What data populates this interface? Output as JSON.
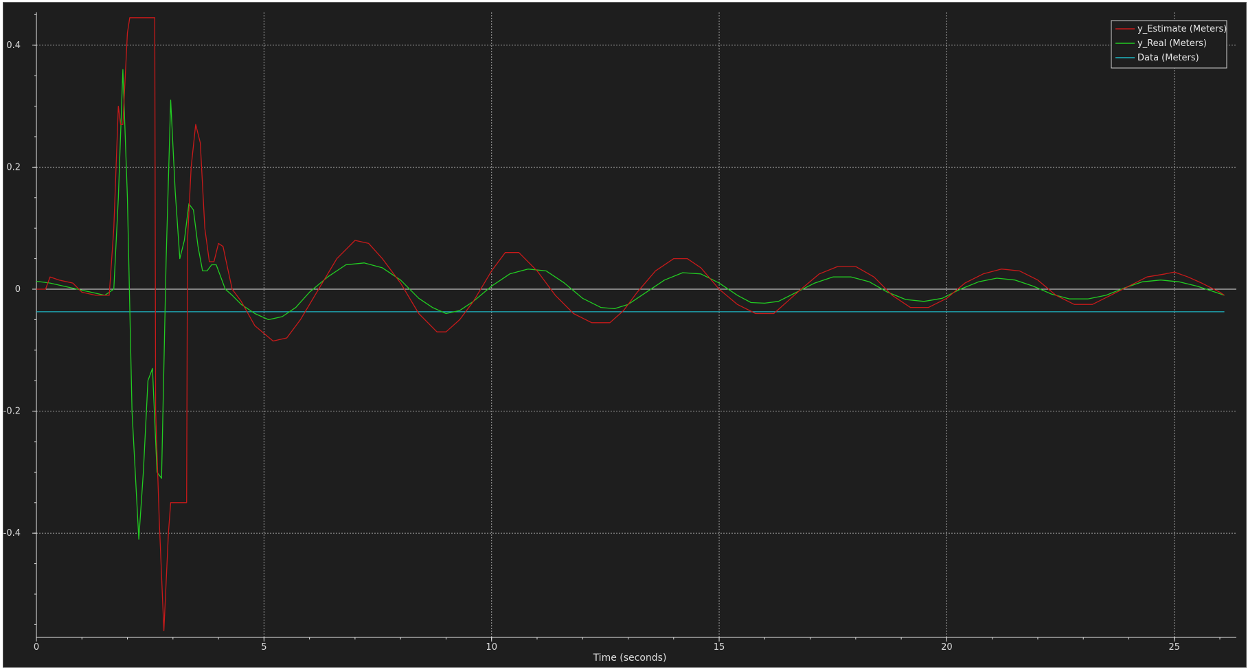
{
  "chart_data": {
    "type": "line",
    "title": "",
    "xlabel": "Time (seconds)",
    "ylabel": "",
    "xlim": [
      0,
      26.3
    ],
    "ylim": [
      -0.57,
      0.47
    ],
    "x_ticks": [
      0,
      5,
      10,
      15,
      20,
      25
    ],
    "y_ticks": [
      -0.4,
      -0.2,
      0,
      0.2,
      0.4
    ],
    "x_tick_labels": [
      "0",
      "5",
      "10",
      "15",
      "20",
      "25"
    ],
    "y_tick_labels": [
      "-0.4",
      "-0.2",
      "0",
      "0.2",
      "0.4"
    ],
    "grid": true,
    "legend_position": "top-right",
    "colors": {
      "background": "#1e1e1e",
      "grid": "#bfbfbf",
      "axis": "#e6e6e6",
      "zero_line": "#e6e6e6"
    },
    "series": [
      {
        "name": "y_Estimate (Meters)",
        "color": "#c81a1a",
        "x": [
          0,
          0.2,
          0.3,
          0.5,
          0.8,
          1.0,
          1.3,
          1.6,
          1.7,
          1.8,
          1.85,
          1.9,
          2.0,
          2.05,
          2.1,
          2.6,
          2.62,
          2.7,
          2.8,
          2.9,
          2.95,
          3.0,
          3.3,
          3.32,
          3.4,
          3.5,
          3.6,
          3.7,
          3.8,
          3.9,
          4.0,
          4.1,
          4.2,
          4.3,
          4.5,
          4.8,
          5.2,
          5.5,
          5.8,
          6.2,
          6.6,
          7.0,
          7.3,
          7.6,
          8.0,
          8.4,
          8.8,
          9.0,
          9.3,
          9.6,
          10.0,
          10.3,
          10.6,
          11.0,
          11.4,
          11.8,
          12.2,
          12.6,
          12.9,
          13.2,
          13.6,
          14.0,
          14.3,
          14.6,
          15.0,
          15.4,
          15.8,
          16.2,
          16.5,
          16.8,
          17.2,
          17.6,
          18.0,
          18.4,
          18.8,
          19.2,
          19.6,
          20.0,
          20.4,
          20.8,
          21.2,
          21.6,
          22.0,
          22.4,
          22.8,
          23.2,
          23.6,
          24.0,
          24.4,
          24.8,
          25.0,
          25.3,
          25.6,
          26.0,
          26.1
        ],
        "y": [
          0.0,
          0.0,
          0.02,
          0.015,
          0.01,
          -0.005,
          -0.01,
          -0.01,
          0.1,
          0.3,
          0.27,
          0.27,
          0.42,
          0.445,
          0.445,
          0.445,
          -0.2,
          -0.38,
          -0.56,
          -0.4,
          -0.35,
          -0.35,
          -0.35,
          0.08,
          0.2,
          0.27,
          0.24,
          0.1,
          0.045,
          0.045,
          0.075,
          0.07,
          0.035,
          0.0,
          -0.02,
          -0.06,
          -0.085,
          -0.08,
          -0.05,
          0.0,
          0.05,
          0.08,
          0.075,
          0.05,
          0.01,
          -0.04,
          -0.07,
          -0.07,
          -0.05,
          -0.02,
          0.03,
          0.06,
          0.06,
          0.03,
          -0.01,
          -0.04,
          -0.055,
          -0.055,
          -0.035,
          -0.005,
          0.03,
          0.05,
          0.05,
          0.035,
          0.0,
          -0.025,
          -0.04,
          -0.04,
          -0.02,
          0.0,
          0.025,
          0.037,
          0.037,
          0.02,
          -0.01,
          -0.03,
          -0.03,
          -0.015,
          0.01,
          0.025,
          0.033,
          0.03,
          0.015,
          -0.01,
          -0.025,
          -0.025,
          -0.01,
          0.005,
          0.02,
          0.025,
          0.028,
          0.02,
          0.01,
          -0.005,
          -0.01
        ]
      },
      {
        "name": "y_Real (Meters)",
        "color": "#22cc22",
        "x": [
          0,
          0.3,
          0.6,
          0.9,
          1.2,
          1.5,
          1.7,
          1.8,
          1.9,
          2.0,
          2.1,
          2.25,
          2.35,
          2.45,
          2.55,
          2.65,
          2.75,
          2.85,
          2.95,
          3.05,
          3.15,
          3.25,
          3.35,
          3.45,
          3.55,
          3.65,
          3.75,
          3.85,
          3.95,
          4.05,
          4.15,
          4.3,
          4.5,
          4.8,
          5.1,
          5.4,
          5.7,
          6.0,
          6.4,
          6.8,
          7.2,
          7.6,
          8.0,
          8.4,
          8.7,
          9.0,
          9.3,
          9.6,
          10.0,
          10.4,
          10.8,
          11.2,
          11.6,
          12.0,
          12.4,
          12.7,
          13.0,
          13.4,
          13.8,
          14.2,
          14.6,
          15.0,
          15.4,
          15.7,
          16.0,
          16.3,
          16.7,
          17.1,
          17.5,
          17.9,
          18.3,
          18.7,
          19.1,
          19.5,
          19.9,
          20.3,
          20.7,
          21.1,
          21.5,
          21.9,
          22.3,
          22.7,
          23.1,
          23.5,
          23.9,
          24.3,
          24.7,
          25.1,
          25.5,
          25.9,
          26.1
        ],
        "y": [
          0.013,
          0.01,
          0.005,
          0.0,
          -0.005,
          -0.01,
          0.0,
          0.15,
          0.36,
          0.15,
          -0.2,
          -0.41,
          -0.3,
          -0.15,
          -0.13,
          -0.3,
          -0.31,
          0.05,
          0.31,
          0.16,
          0.05,
          0.08,
          0.14,
          0.13,
          0.07,
          0.03,
          0.03,
          0.04,
          0.04,
          0.02,
          0.0,
          -0.01,
          -0.025,
          -0.04,
          -0.05,
          -0.045,
          -0.03,
          -0.005,
          0.02,
          0.04,
          0.043,
          0.035,
          0.015,
          -0.015,
          -0.03,
          -0.04,
          -0.035,
          -0.02,
          0.005,
          0.025,
          0.033,
          0.03,
          0.01,
          -0.015,
          -0.03,
          -0.032,
          -0.025,
          -0.005,
          0.015,
          0.027,
          0.025,
          0.01,
          -0.01,
          -0.022,
          -0.023,
          -0.02,
          -0.005,
          0.01,
          0.02,
          0.02,
          0.012,
          -0.005,
          -0.017,
          -0.02,
          -0.015,
          0.0,
          0.012,
          0.018,
          0.015,
          0.005,
          -0.008,
          -0.016,
          -0.016,
          -0.01,
          0.002,
          0.012,
          0.015,
          0.012,
          0.005,
          -0.005,
          -0.01
        ]
      },
      {
        "name": "Data (Meters)",
        "color": "#1fb6c4",
        "x": [
          0,
          26.1
        ],
        "y": [
          -0.037,
          -0.037
        ]
      }
    ]
  }
}
